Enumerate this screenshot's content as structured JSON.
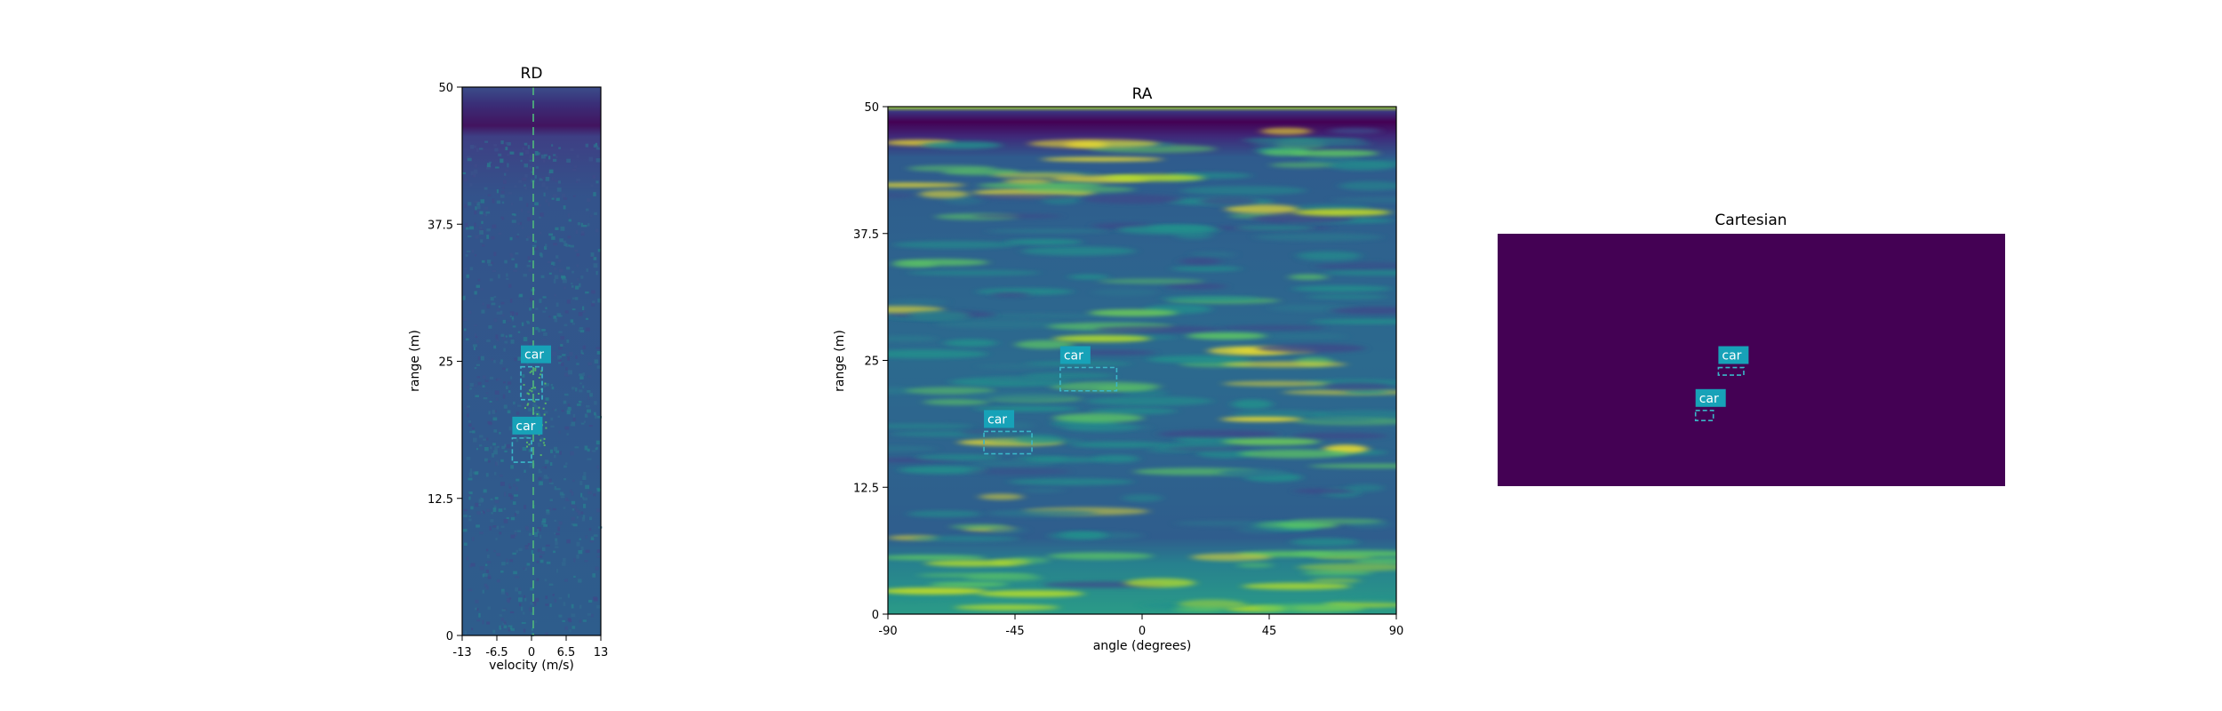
{
  "chart_data": [
    {
      "type": "heatmap",
      "title": "RD",
      "xlabel": "velocity (m/s)",
      "ylabel": "range (m)",
      "xlim": [
        -13,
        13
      ],
      "ylim": [
        0,
        50
      ],
      "xticks": [
        "-13",
        "-6.5",
        "0",
        "6.5",
        "13"
      ],
      "yticks": [
        "0",
        "12.5",
        "25",
        "37.5",
        "50"
      ],
      "colormap": "viridis",
      "annotations": [
        {
          "label": "car",
          "x": [
            -2.0,
            2.0
          ],
          "y": [
            21.5,
            24.5
          ]
        },
        {
          "label": "car",
          "x": [
            -3.6,
            0.0
          ],
          "y": [
            15.8,
            18.0
          ]
        }
      ]
    },
    {
      "type": "heatmap",
      "title": "RA",
      "xlabel": "angle (degrees)",
      "ylabel": "range (m)",
      "xlim": [
        -90,
        90
      ],
      "ylim": [
        0,
        50
      ],
      "xticks": [
        "-90",
        "-45",
        "0",
        "45",
        "90"
      ],
      "yticks": [
        "0",
        "12.5",
        "25",
        "37.5",
        "50"
      ],
      "colormap": "viridis",
      "annotations": [
        {
          "label": "car",
          "x": [
            -29,
            -9
          ],
          "y": [
            22,
            24.3
          ]
        },
        {
          "label": "car",
          "x": [
            -56,
            -39
          ],
          "y": [
            15.8,
            18
          ]
        }
      ]
    },
    {
      "type": "heatmap",
      "title": "Cartesian",
      "fill_color": "#440154",
      "annotations": [
        {
          "label": "car",
          "rel": [
            0.435,
            0.53,
            0.05,
            0.03
          ]
        },
        {
          "label": "car",
          "rel": [
            0.39,
            0.7,
            0.035,
            0.04
          ]
        }
      ]
    }
  ],
  "colors": {
    "box": "#3ab7c8",
    "label_bg": "#17a2b8",
    "label_text": "#ffffff",
    "cmap_dark": "#440154",
    "cmap_bg": "#3b528b",
    "cmap_mid": "#21918c",
    "cmap_hi": "#5ec962",
    "cmap_top": "#fde725"
  }
}
